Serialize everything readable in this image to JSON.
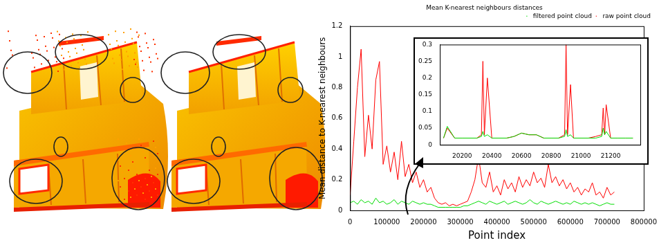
{
  "chart_data": [
    {
      "type": "line",
      "title": "Mean K-nearest neighbours distances",
      "x_label": "Point index",
      "y_label": "Mean distance to K-nearest neighbours",
      "x": [
        0,
        10000,
        20000,
        30000,
        40000,
        50000,
        60000,
        70000,
        80000,
        90000,
        100000,
        110000,
        120000,
        130000,
        140000,
        150000,
        160000,
        170000,
        180000,
        190000,
        200000,
        210000,
        220000,
        230000,
        240000,
        250000,
        260000,
        270000,
        280000,
        290000,
        300000,
        310000,
        320000,
        330000,
        340000,
        350000,
        360000,
        370000,
        380000,
        390000,
        400000,
        410000,
        420000,
        430000,
        440000,
        450000,
        460000,
        470000,
        480000,
        490000,
        500000,
        510000,
        520000,
        530000,
        540000,
        550000,
        560000,
        570000,
        580000,
        590000,
        600000,
        610000,
        620000,
        630000,
        640000,
        650000,
        660000,
        670000,
        680000,
        690000,
        700000,
        710000,
        720000
      ],
      "series": [
        {
          "name": "raw point cloud",
          "color": "#ff0000",
          "values": [
            0.1,
            0.45,
            0.8,
            1.05,
            0.35,
            0.62,
            0.4,
            0.85,
            0.97,
            0.3,
            0.42,
            0.25,
            0.38,
            0.2,
            0.45,
            0.22,
            0.3,
            0.18,
            0.25,
            0.15,
            0.2,
            0.12,
            0.15,
            0.08,
            0.05,
            0.04,
            0.05,
            0.03,
            0.04,
            0.03,
            0.04,
            0.05,
            0.06,
            0.12,
            0.2,
            0.35,
            0.18,
            0.15,
            0.25,
            0.12,
            0.16,
            0.1,
            0.2,
            0.14,
            0.18,
            0.12,
            0.22,
            0.15,
            0.2,
            0.16,
            0.25,
            0.18,
            0.21,
            0.15,
            0.3,
            0.18,
            0.22,
            0.16,
            0.2,
            0.14,
            0.18,
            0.12,
            0.15,
            0.1,
            0.14,
            0.12,
            0.18,
            0.1,
            0.12,
            0.08,
            0.15,
            0.1,
            0.12
          ]
        },
        {
          "name": "filtered point cloud",
          "color": "#00dd00",
          "values": [
            0.05,
            0.06,
            0.04,
            0.07,
            0.05,
            0.06,
            0.04,
            0.08,
            0.05,
            0.06,
            0.04,
            0.05,
            0.07,
            0.04,
            0.06,
            0.05,
            0.04,
            0.06,
            0.05,
            0.04,
            0.05,
            0.04,
            0.04,
            0.03,
            0.02,
            0.02,
            0.02,
            0.02,
            0.02,
            0.02,
            0.02,
            0.03,
            0.03,
            0.04,
            0.05,
            0.06,
            0.05,
            0.04,
            0.06,
            0.05,
            0.04,
            0.05,
            0.06,
            0.04,
            0.05,
            0.06,
            0.05,
            0.04,
            0.05,
            0.07,
            0.05,
            0.04,
            0.06,
            0.05,
            0.04,
            0.05,
            0.06,
            0.05,
            0.04,
            0.05,
            0.04,
            0.06,
            0.05,
            0.04,
            0.05,
            0.04,
            0.05,
            0.04,
            0.03,
            0.04,
            0.05,
            0.04,
            0.04
          ]
        }
      ],
      "xlim": [
        0,
        800000
      ],
      "xticks": [
        0,
        100000,
        200000,
        300000,
        400000,
        500000,
        600000,
        700000,
        800000
      ],
      "ylim": [
        0,
        1.2
      ],
      "yticks": [
        0,
        0.2,
        0.4,
        0.6,
        0.8,
        1,
        1.2
      ],
      "legend": "upper right",
      "grid": false,
      "marker": "none"
    },
    {
      "type": "line",
      "x": [
        20075,
        20100,
        20150,
        20200,
        20250,
        20300,
        20330,
        20340,
        20350,
        20370,
        20400,
        20450,
        20500,
        20550,
        20600,
        20650,
        20700,
        20750,
        20800,
        20850,
        20890,
        20900,
        20910,
        20930,
        20950,
        21000,
        21050,
        21100,
        21140,
        21150,
        21160,
        21170,
        21200,
        21250,
        21300,
        21350
      ],
      "series": [
        {
          "color": "#ff0000",
          "values": [
            0.02,
            0.05,
            0.02,
            0.02,
            0.02,
            0.02,
            0.03,
            0.25,
            0.03,
            0.2,
            0.02,
            0.02,
            0.02,
            0.025,
            0.035,
            0.03,
            0.03,
            0.02,
            0.02,
            0.02,
            0.03,
            0.3,
            0.03,
            0.18,
            0.02,
            0.02,
            0.02,
            0.025,
            0.03,
            0.11,
            0.03,
            0.12,
            0.02,
            0.02,
            0.02,
            0.02
          ]
        },
        {
          "color": "#00dd00",
          "values": [
            0.02,
            0.055,
            0.02,
            0.02,
            0.02,
            0.02,
            0.025,
            0.04,
            0.025,
            0.03,
            0.02,
            0.02,
            0.02,
            0.025,
            0.035,
            0.03,
            0.03,
            0.02,
            0.02,
            0.02,
            0.025,
            0.045,
            0.025,
            0.03,
            0.02,
            0.02,
            0.02,
            0.02,
            0.025,
            0.05,
            0.03,
            0.04,
            0.02,
            0.02,
            0.02,
            0.02
          ]
        }
      ],
      "xlim": [
        20050,
        21400
      ],
      "xticks": [
        20200,
        20400,
        20600,
        20800,
        21000,
        21200
      ],
      "ylim": [
        0,
        0.3
      ],
      "yticks": [
        0,
        0.05,
        0.1,
        0.15,
        0.2,
        0.25,
        0.3
      ],
      "grid": false,
      "marker": "none"
    }
  ]
}
